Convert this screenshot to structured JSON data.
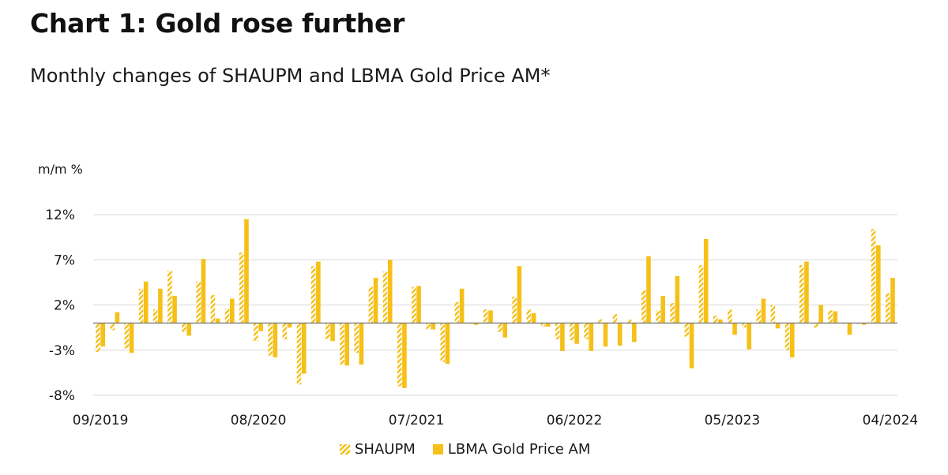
{
  "title": "Chart 1: Gold rose further",
  "subtitle": "Monthly changes of SHAUPM and LBMA Gold Price AM*",
  "colors": {
    "bar": "#f5c018",
    "grid": "#d9d9d9",
    "axis": "#7f7f7f"
  },
  "chart_data": {
    "type": "bar",
    "ylabel": "m/m %",
    "ylim": [
      -8,
      12
    ],
    "yticks": [
      "12%",
      "7%",
      "2%",
      "-3%",
      "-8%"
    ],
    "xticks": [
      "09/2019",
      "08/2020",
      "07/2021",
      "06/2022",
      "05/2023",
      "04/2024"
    ],
    "categories": [
      "09/2019",
      "10/2019",
      "11/2019",
      "12/2019",
      "01/2020",
      "02/2020",
      "03/2020",
      "04/2020",
      "05/2020",
      "06/2020",
      "07/2020",
      "08/2020",
      "09/2020",
      "10/2020",
      "11/2020",
      "12/2020",
      "01/2021",
      "02/2021",
      "03/2021",
      "04/2021",
      "05/2021",
      "06/2021",
      "07/2021",
      "08/2021",
      "09/2021",
      "10/2021",
      "11/2021",
      "12/2021",
      "01/2022",
      "02/2022",
      "03/2022",
      "04/2022",
      "05/2022",
      "06/2022",
      "07/2022",
      "08/2022",
      "09/2022",
      "10/2022",
      "11/2022",
      "12/2022",
      "01/2023",
      "02/2023",
      "03/2023",
      "04/2023",
      "05/2023",
      "06/2023",
      "07/2023",
      "08/2023",
      "09/2023",
      "10/2023",
      "11/2023",
      "12/2023",
      "01/2024",
      "02/2024",
      "03/2024",
      "04/2024"
    ],
    "series": [
      {
        "name": "SHAUPM",
        "pattern": "hatched",
        "values": [
          -3.2,
          -0.8,
          -2.8,
          3.8,
          1.5,
          5.8,
          -1.0,
          4.6,
          3.1,
          1.6,
          7.8,
          -2.0,
          -3.6,
          -1.8,
          -6.8,
          6.3,
          -1.8,
          -4.6,
          -3.3,
          4.0,
          5.7,
          -7.0,
          4.0,
          -0.7,
          -4.3,
          2.3,
          -0.1,
          1.5,
          -1.0,
          2.9,
          1.5,
          -0.4,
          -1.8,
          -1.9,
          -1.8,
          0.4,
          1.0,
          0.4,
          3.6,
          1.4,
          2.2,
          -1.5,
          6.4,
          0.8,
          1.5,
          -0.5,
          1.5,
          2.0,
          -3.0,
          6.4,
          -0.5,
          1.4,
          -0.1,
          -0.1,
          10.4,
          3.3
        ]
      },
      {
        "name": "LBMA Gold Price AM",
        "values": [
          -2.6,
          1.2,
          -3.3,
          4.6,
          3.8,
          3.0,
          -1.4,
          7.1,
          0.5,
          2.7,
          11.5,
          -0.9,
          -3.8,
          -0.5,
          -5.6,
          6.8,
          -2.0,
          -4.7,
          -4.6,
          5.0,
          7.0,
          -7.2,
          4.1,
          -0.7,
          -4.5,
          3.8,
          -0.2,
          1.4,
          -1.6,
          6.3,
          1.1,
          -0.4,
          -3.1,
          -2.3,
          -3.1,
          -2.6,
          -2.5,
          -2.1,
          7.4,
          3.0,
          5.2,
          -5.0,
          9.3,
          0.4,
          -1.3,
          -2.9,
          2.7,
          -0.6,
          -3.8,
          6.8,
          2.0,
          1.3,
          -1.3,
          -0.2,
          8.6,
          5.0
        ]
      }
    ],
    "legend": {
      "position": "bottom",
      "labels": [
        "SHAUPM",
        "LBMA Gold Price AM"
      ]
    }
  }
}
